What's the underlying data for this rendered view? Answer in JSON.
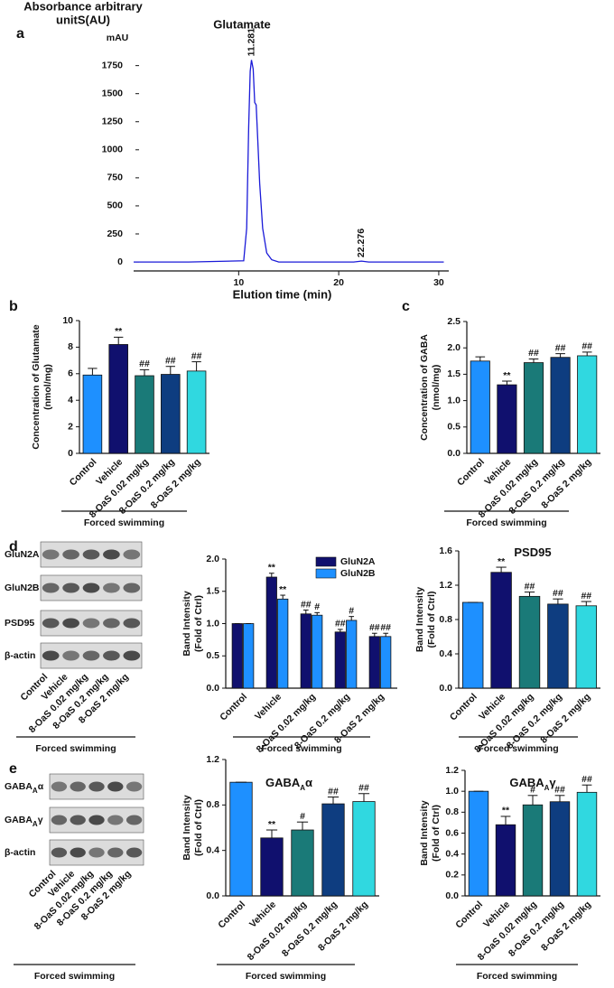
{
  "chart_data": [
    {
      "panel": "a",
      "type": "line",
      "title": "Glutamate",
      "ylabel": [
        "Absorbance arbitrary",
        "unitS(AU)"
      ],
      "yunit": "mAU",
      "xlabel": "Elution time (min)",
      "x": [
        -0.5,
        5,
        10.5,
        10.8,
        11.0,
        11.15,
        11.281,
        11.45,
        11.6,
        11.75,
        11.9,
        12.1,
        12.4,
        12.8,
        13.3,
        14,
        20,
        21.5,
        22.276,
        23,
        30.5
      ],
      "values": [
        0,
        0,
        10,
        300,
        1200,
        1700,
        1800,
        1720,
        1420,
        1400,
        1100,
        700,
        300,
        80,
        20,
        0,
        0,
        0,
        8,
        0,
        0
      ],
      "color": "#1a1ad8",
      "peaks": [
        11.281,
        22.276
      ],
      "xlim": [
        -0.5,
        31
      ],
      "ylim": [
        -80,
        1900
      ],
      "xticks": [
        10,
        20,
        30
      ],
      "yticks": [
        0,
        250,
        500,
        750,
        1000,
        1250,
        1500,
        1750
      ]
    },
    {
      "panel": "b",
      "type": "bar",
      "ylabel": [
        "Concentration of Glutamate",
        "(nmol/mg)"
      ],
      "categories": [
        "Control",
        "Vehicle",
        "8-OaS 0.02 mg/kg",
        "8-OaS 0.2 mg/kg",
        "8-OaS 2 mg/kg"
      ],
      "series": [
        {
          "values": [
            5.9,
            8.2,
            5.85,
            5.95,
            6.2
          ],
          "errors": [
            0.5,
            0.55,
            0.45,
            0.6,
            0.7
          ],
          "colors": [
            "#1e90ff",
            "#10106e",
            "#1a7a78",
            "#0e3d80",
            "#30d8e0"
          ],
          "annotations": [
            null,
            "**",
            "##",
            "##",
            "##"
          ]
        }
      ],
      "group_label": "Forced swimming",
      "ylim": [
        0,
        10
      ],
      "yticks": [
        0,
        2,
        4,
        6,
        8,
        10
      ]
    },
    {
      "panel": "c",
      "type": "bar",
      "ylabel": [
        "Concentration of GABA",
        "(nmol/mg)"
      ],
      "categories": [
        "Control",
        "Vehicle",
        "8-OaS 0.02 mg/kg",
        "8-OaS 0.2 mg/kg",
        "8-OaS 2 mg/kg"
      ],
      "series": [
        {
          "values": [
            1.75,
            1.3,
            1.72,
            1.82,
            1.85
          ],
          "errors": [
            0.08,
            0.07,
            0.07,
            0.07,
            0.07
          ],
          "colors": [
            "#1e90ff",
            "#10106e",
            "#1a7a78",
            "#0e3d80",
            "#30d8e0"
          ],
          "annotations": [
            null,
            "**",
            "##",
            "##",
            "##"
          ]
        }
      ],
      "group_label": "Forced swimming",
      "ylim": [
        0,
        2.5
      ],
      "yticks": [
        {
          "value": 0,
          "label": "0.0"
        },
        0.5,
        {
          "value": 1,
          "label": "1.0"
        },
        1.5,
        {
          "value": 2,
          "label": "2.0"
        },
        2.5
      ]
    },
    {
      "panel": "d",
      "type": "bar",
      "ylabel": [
        "Band Intensity",
        "(Fold of Ctrl)"
      ],
      "categories": [
        "Control",
        "Vehicle",
        "8-OaS 0.02 mg/kg",
        "8-OaS 0.2 mg/kg",
        "8-OaS 2 mg/kg"
      ],
      "series": [
        {
          "name": "GluN2A",
          "color": "#10106e",
          "values": [
            1.0,
            1.72,
            1.15,
            0.87,
            0.8
          ],
          "errors": [
            0,
            0.06,
            0.06,
            0.04,
            0.05
          ],
          "annotations": [
            null,
            "**",
            "##",
            "##",
            "##"
          ]
        },
        {
          "name": "GluN2B",
          "color": "#1e90ff",
          "values": [
            1.0,
            1.38,
            1.13,
            1.05,
            0.8
          ],
          "errors": [
            0,
            0.06,
            0.04,
            0.06,
            0.05
          ],
          "annotations": [
            null,
            "**",
            "#",
            "#",
            "##"
          ]
        }
      ],
      "group_label": "Forced swimming",
      "ylim": [
        0,
        2
      ],
      "yticks": [
        {
          "value": 0,
          "label": "0.0"
        },
        0.5,
        {
          "value": 1,
          "label": "1.0"
        },
        1.5,
        {
          "value": 2,
          "label": "2.0"
        }
      ]
    },
    {
      "type": "bar",
      "title": [
        "PSD95"
      ],
      "ylabel": [
        "Band Intensity",
        "(Fold of Ctrl)"
      ],
      "categories": [
        "Control",
        "Vehicle",
        "8-OaS 0.02 mg/kg",
        "8-OaS 0.2 mg/kg",
        "8-OaS 2 mg/kg"
      ],
      "series": [
        {
          "values": [
            1.0,
            1.35,
            1.07,
            0.98,
            0.96
          ],
          "errors": [
            0,
            0.06,
            0.05,
            0.06,
            0.05
          ],
          "colors": [
            "#1e90ff",
            "#10106e",
            "#1a7a78",
            "#0e3d80",
            "#30d8e0"
          ],
          "annotations": [
            null,
            "**",
            "##",
            "##",
            "##"
          ]
        }
      ],
      "group_label": "Forced swimming",
      "ylim": [
        0,
        1.6
      ],
      "yticks": [
        {
          "value": 0,
          "label": "0.0"
        },
        0.4,
        0.8,
        1.2,
        1.6
      ]
    },
    {
      "panel": "e",
      "type": "bar",
      "title": [
        "GABA",
        "A",
        "α"
      ],
      "ylabel": [
        "Band Intensity",
        "(Fold of Ctrl)"
      ],
      "categories": [
        "Control",
        "Vehicle",
        "8-OaS 0.02 mg/kg",
        "8-OaS 0.2 mg/kg",
        "8-OaS 2 mg/kg"
      ],
      "series": [
        {
          "values": [
            1.0,
            0.51,
            0.58,
            0.81,
            0.83
          ],
          "errors": [
            0,
            0.07,
            0.07,
            0.06,
            0.07
          ],
          "colors": [
            "#1e90ff",
            "#10106e",
            "#1a7a78",
            "#0e3d80",
            "#30d8e0"
          ],
          "annotations": [
            null,
            "**",
            "#",
            "##",
            "##"
          ]
        }
      ],
      "group_label": "Forced swimming",
      "ylim": [
        0,
        1.2
      ],
      "yticks": [
        {
          "value": 0,
          "label": "0.0"
        },
        0.4,
        0.8,
        1.2
      ]
    },
    {
      "type": "bar",
      "title": [
        "GABA",
        "A",
        "γ"
      ],
      "ylabel": [
        "Band Intensity",
        "(Fold of Ctrl)"
      ],
      "categories": [
        "Control",
        "Vehicle",
        "8-OaS 0.02 mg/kg",
        "8-OaS 0.2 mg/kg",
        "8-OaS 2 mg/kg"
      ],
      "series": [
        {
          "values": [
            1.0,
            0.68,
            0.87,
            0.9,
            0.99
          ],
          "errors": [
            0,
            0.08,
            0.09,
            0.06,
            0.07
          ],
          "colors": [
            "#1e90ff",
            "#10106e",
            "#1a7a78",
            "#0e3d80",
            "#30d8e0"
          ],
          "annotations": [
            null,
            "**",
            "#",
            "##",
            "##"
          ]
        }
      ],
      "group_label": "Forced swimming",
      "ylim": [
        0,
        1.2
      ],
      "yticks": [
        {
          "value": 0,
          "label": "0.0"
        },
        0.2,
        0.4,
        0.6,
        0.8,
        {
          "value": 1,
          "label": "1.0"
        },
        1.2
      ]
    }
  ],
  "blots": [
    {
      "rows": [
        "GluN2A",
        "GluN2B",
        "PSD95",
        "β-actin"
      ],
      "categories": [
        "Control",
        "Vehicle",
        "8-OaS 0.02 mg/kg",
        "8-OaS 0.2 mg/kg",
        "8-OaS 2 mg/kg"
      ],
      "group_label": "Forced swimming"
    },
    {
      "rows": [
        [
          "GABA",
          "A",
          "α"
        ],
        [
          "GABA",
          "A",
          "γ"
        ],
        [
          "β-actin"
        ]
      ],
      "categories": [
        "Control",
        "Vehicle",
        "8-OaS 0.02 mg/kg",
        "8-OaS 0.2 mg/kg",
        "8-OaS 2 mg/kg"
      ],
      "group_label": "Forced swimming"
    }
  ]
}
